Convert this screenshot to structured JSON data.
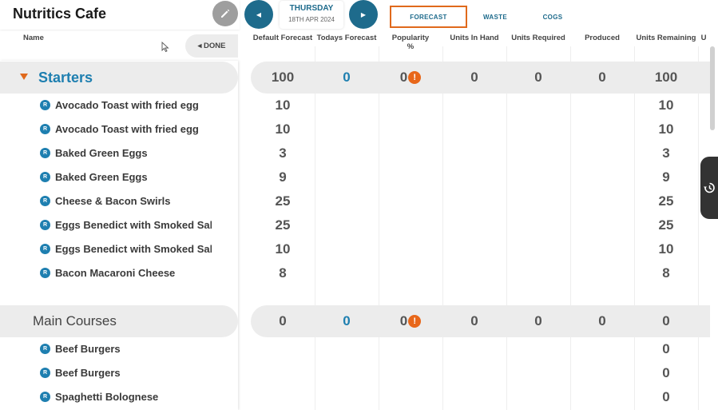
{
  "header": {
    "app_title": "Nutritics Cafe",
    "day": "THURSDAY",
    "date": "18TH APR 2024",
    "prev_glyph": "◀",
    "next_glyph": "▶"
  },
  "tabs": [
    {
      "label": "FORECAST",
      "active": true
    },
    {
      "label": "WASTE",
      "active": false
    },
    {
      "label": "COGS",
      "active": false
    }
  ],
  "columns": {
    "name": "Name",
    "default_forecast": "Default Forecast",
    "todays_forecast": "Todays Forecast",
    "popularity_line1": "Popularity",
    "popularity_line2": "%",
    "units_in_hand": "Units In Hand",
    "units_required": "Units Required",
    "produced": "Produced",
    "units_remaining": "Units Remaining",
    "cut_off": "U"
  },
  "done_label": "◂ DONE",
  "badge_letter": "R",
  "alert_glyph": "!",
  "groups": {
    "starters": {
      "title": "Starters",
      "totals": {
        "default_forecast": "100",
        "todays_forecast": "0",
        "popularity": "0",
        "units_in_hand": "0",
        "units_required": "0",
        "produced": "0",
        "units_remaining": "100"
      },
      "items": [
        {
          "name": "Avocado Toast with fried egg",
          "default_forecast": "10",
          "units_remaining": "10"
        },
        {
          "name": "Avocado Toast with fried egg",
          "default_forecast": "10",
          "units_remaining": "10"
        },
        {
          "name": "Baked Green Eggs",
          "default_forecast": "3",
          "units_remaining": "3"
        },
        {
          "name": "Baked Green Eggs",
          "default_forecast": "9",
          "units_remaining": "9"
        },
        {
          "name": "Cheese & Bacon Swirls",
          "default_forecast": "25",
          "units_remaining": "25"
        },
        {
          "name": "Eggs Benedict with Smoked Salm",
          "default_forecast": "25",
          "units_remaining": "25"
        },
        {
          "name": "Eggs Benedict with Smoked Salm",
          "default_forecast": "10",
          "units_remaining": "10"
        },
        {
          "name": "Bacon Macaroni Cheese",
          "default_forecast": "8",
          "units_remaining": "8"
        }
      ]
    },
    "main_courses": {
      "title": "Main Courses",
      "totals": {
        "default_forecast": "0",
        "todays_forecast": "0",
        "popularity": "0",
        "units_in_hand": "0",
        "units_required": "0",
        "produced": "0",
        "units_remaining": "0"
      },
      "items": [
        {
          "name": "Beef Burgers",
          "units_remaining": "0"
        },
        {
          "name": "Beef Burgers",
          "units_remaining": "0"
        },
        {
          "name": "Spaghetti Bolognese",
          "units_remaining": "0"
        }
      ]
    }
  },
  "colors": {
    "accent": "#1e7fb0",
    "nav": "#1e6b8c",
    "highlight": "#e0691c",
    "band": "#ececec"
  }
}
